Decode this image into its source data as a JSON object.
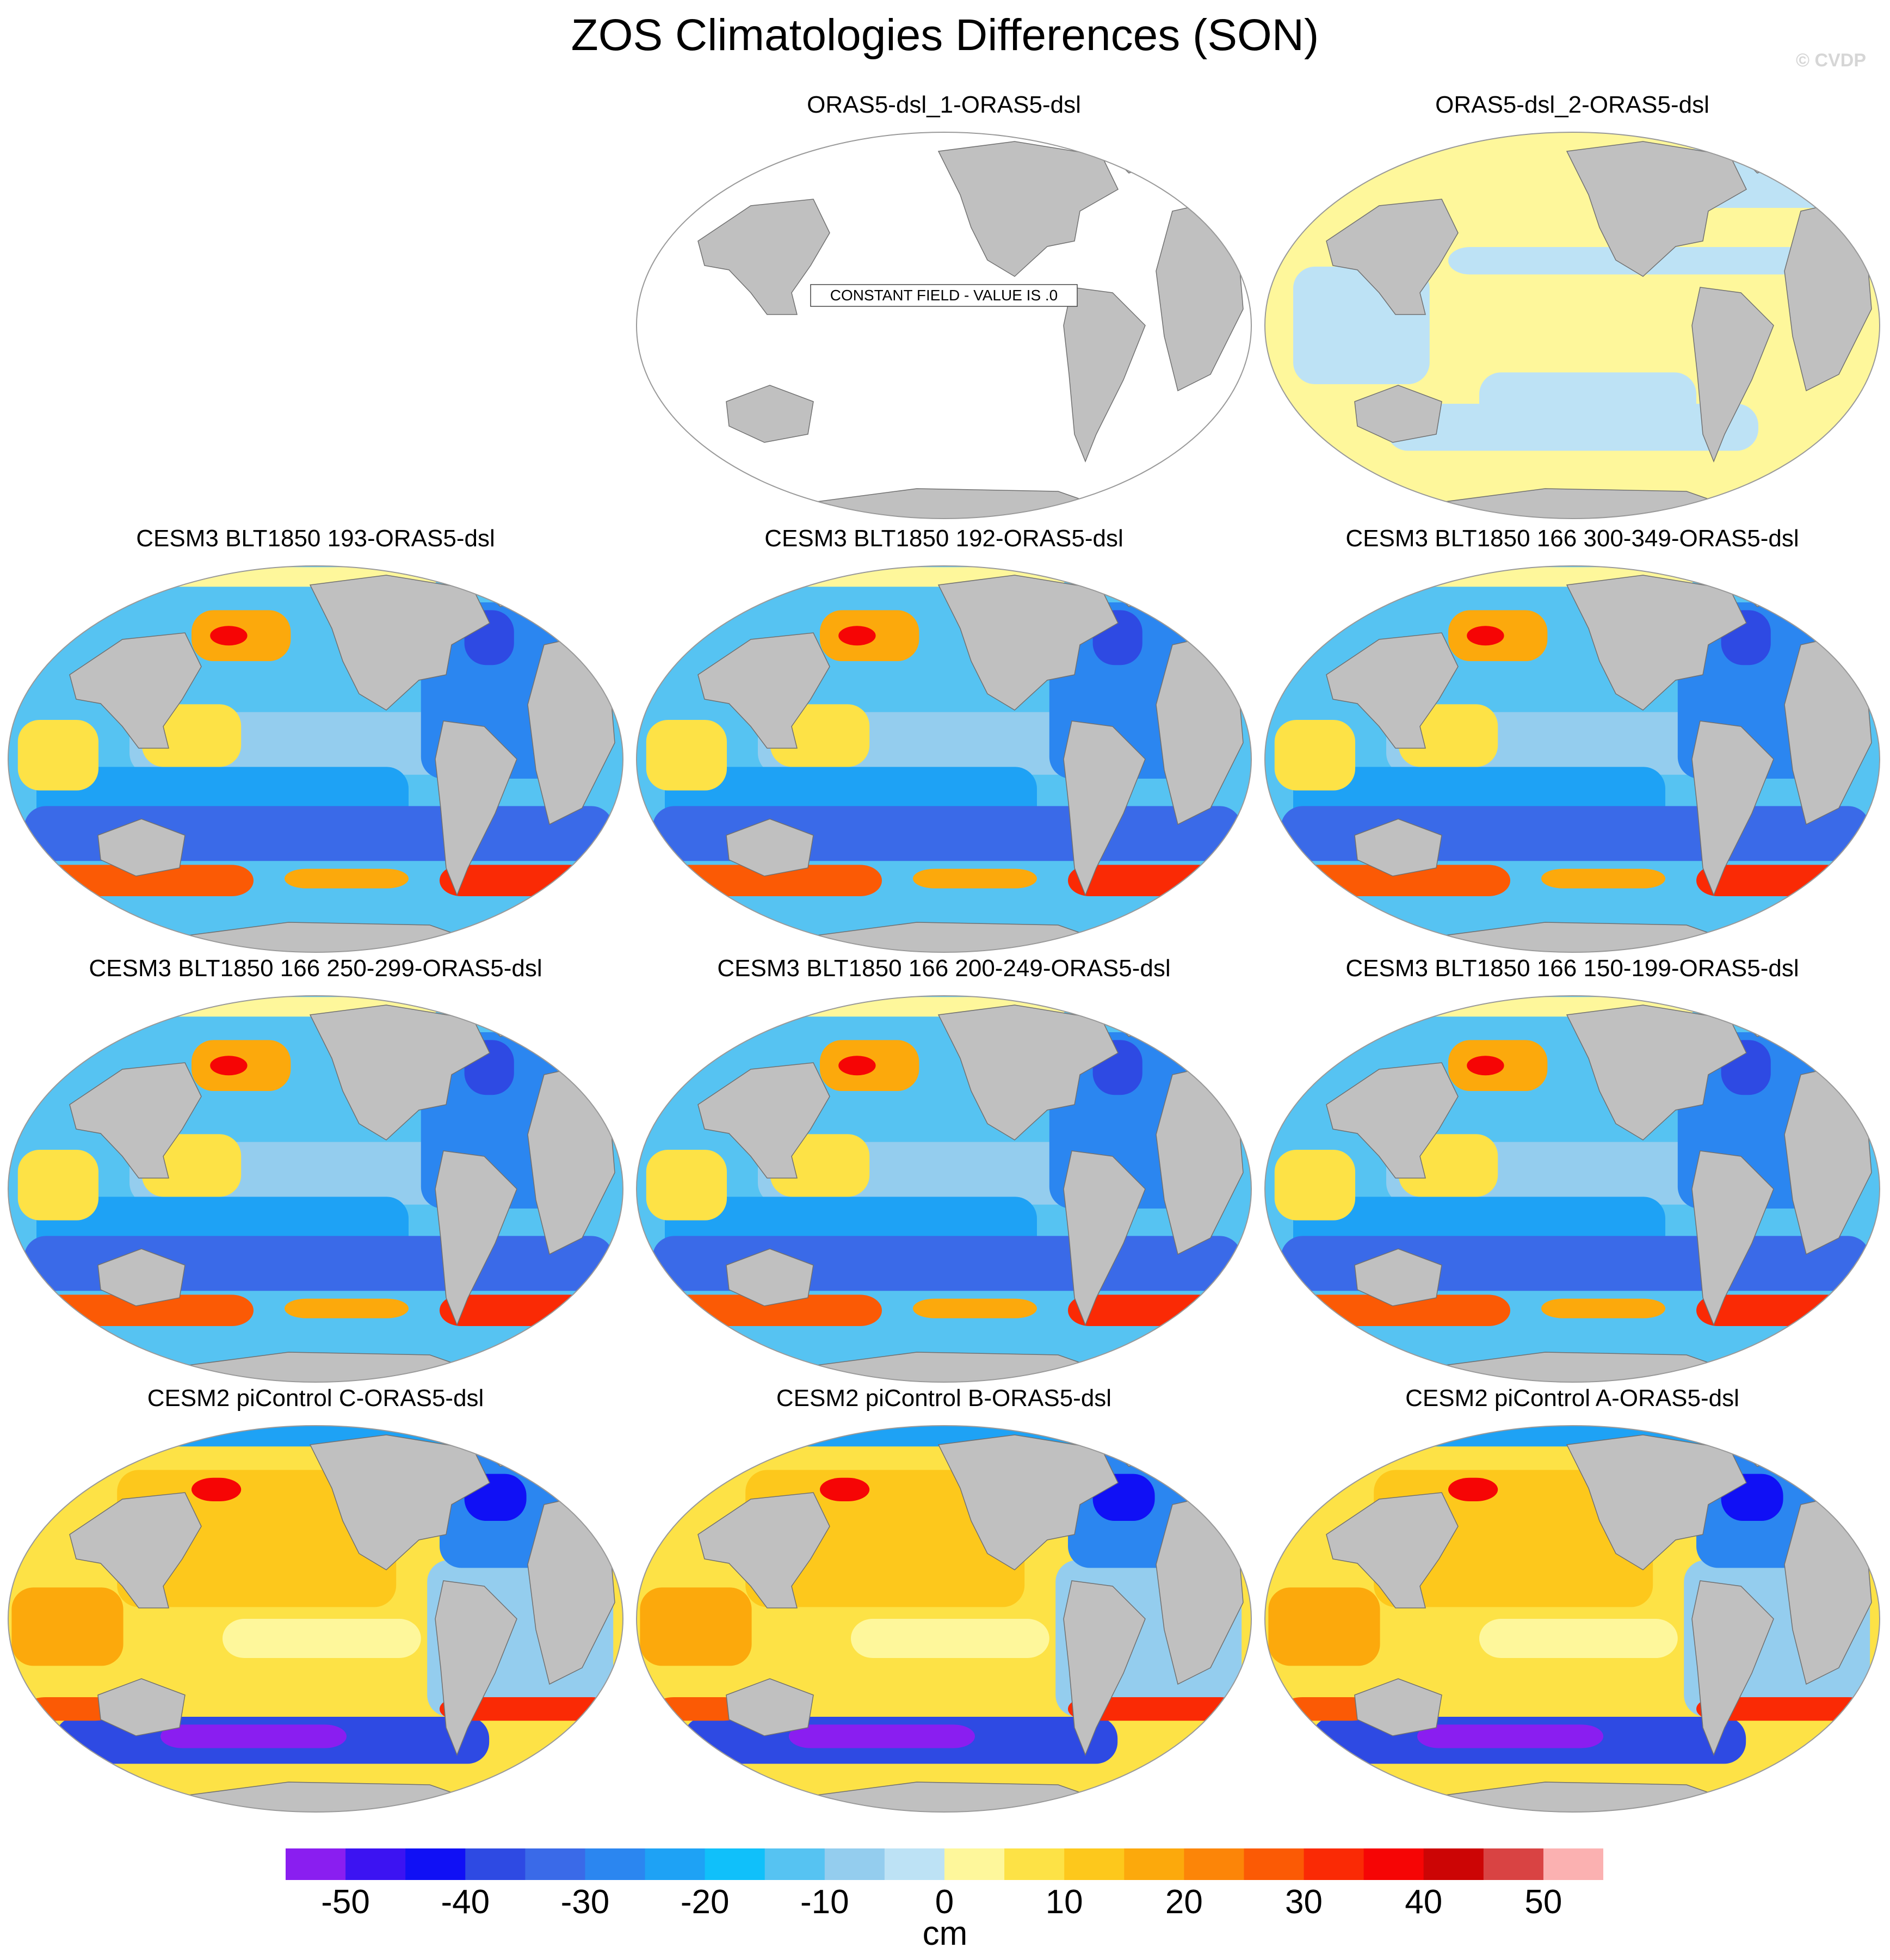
{
  "title": "ZOS Climatologies Differences (SON)",
  "watermark": "© CVDP",
  "panels": [
    {
      "label": "ORAS5-dsl_1-ORAS5-dsl",
      "style": "constant",
      "note": "CONSTANT FIELD - VALUE IS .0"
    },
    {
      "label": "ORAS5-dsl_2-ORAS5-dsl",
      "style": "near-zero"
    },
    {
      "label": "CESM3 BLT1850 193-ORAS5-dsl",
      "style": "cesm3"
    },
    {
      "label": "CESM3 BLT1850 192-ORAS5-dsl",
      "style": "cesm3"
    },
    {
      "label": "CESM3 BLT1850 166 300-349-ORAS5-dsl",
      "style": "cesm3"
    },
    {
      "label": "CESM3 BLT1850 166 250-299-ORAS5-dsl",
      "style": "cesm3"
    },
    {
      "label": "CESM3 BLT1850 166 200-249-ORAS5-dsl",
      "style": "cesm3"
    },
    {
      "label": "CESM3 BLT1850 166 150-199-ORAS5-dsl",
      "style": "cesm3"
    },
    {
      "label": "CESM2 piControl C-ORAS5-dsl",
      "style": "cesm2"
    },
    {
      "label": "CESM2 piControl B-ORAS5-dsl",
      "style": "cesm2"
    },
    {
      "label": "CESM2 piControl A-ORAS5-dsl",
      "style": "cesm2"
    }
  ],
  "colorbar": {
    "units": "cm",
    "tick_labels": [
      "-50",
      "-40",
      "-30",
      "-20",
      "-10",
      "0",
      "10",
      "20",
      "30",
      "40",
      "50"
    ],
    "colors": [
      "#8a1ef0",
      "#3c13f2",
      "#1010f5",
      "#2e4ae3",
      "#3a6ae8",
      "#2b86f0",
      "#1ea2f5",
      "#10c0fa",
      "#56c3f2",
      "#94cdee",
      "#bde2f5",
      "#fef79b",
      "#fde246",
      "#fdc81c",
      "#fca90c",
      "#fc8508",
      "#fb5a05",
      "#fa2a05",
      "#f60505",
      "#cc0505",
      "#d94343",
      "#fbb1b1"
    ]
  }
}
